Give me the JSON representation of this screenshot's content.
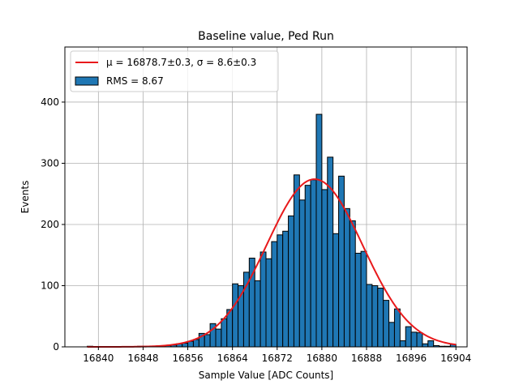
{
  "colors": {
    "bar_fill": "#1f77b4",
    "bar_edge": "#000000",
    "fit_line": "#e8191b",
    "grid": "#b0b0b0"
  },
  "chart_data": {
    "type": "bar",
    "title": "Baseline value, Ped Run",
    "xlabel": "Sample Value [ADC Counts]",
    "ylabel": "Events",
    "xlim": [
      16834,
      16906
    ],
    "ylim": [
      0,
      490
    ],
    "grid": true,
    "legend_position": "top-left",
    "x_ticks": [
      16840,
      16848,
      16856,
      16864,
      16872,
      16880,
      16888,
      16896,
      16904
    ],
    "y_ticks": [
      0,
      100,
      200,
      300,
      400
    ],
    "bin_width": 1,
    "x": [
      16838,
      16839,
      16840,
      16841,
      16842,
      16843,
      16844,
      16845,
      16846,
      16847,
      16848,
      16849,
      16850,
      16851,
      16852,
      16853,
      16854,
      16855,
      16856,
      16857,
      16858,
      16859,
      16860,
      16861,
      16862,
      16863,
      16864,
      16865,
      16866,
      16867,
      16868,
      16869,
      16870,
      16871,
      16872,
      16873,
      16874,
      16875,
      16876,
      16877,
      16878,
      16879,
      16880,
      16881,
      16882,
      16883,
      16884,
      16885,
      16886,
      16887,
      16888,
      16889,
      16890,
      16891,
      16892,
      16893,
      16894,
      16895,
      16896,
      16897,
      16898,
      16899,
      16900,
      16901,
      16902,
      16903
    ],
    "values": [
      1,
      0,
      0,
      0,
      0,
      0,
      0,
      0,
      0,
      1,
      1,
      1,
      1,
      1,
      2,
      3,
      5,
      6,
      9,
      12,
      22,
      20,
      38,
      29,
      46,
      61,
      103,
      100,
      122,
      145,
      108,
      155,
      144,
      172,
      183,
      189,
      214,
      281,
      240,
      264,
      273,
      380,
      257,
      310,
      185,
      279,
      226,
      206,
      153,
      156,
      102,
      100,
      96,
      76,
      40,
      62,
      10,
      33,
      24,
      23,
      5,
      10,
      2,
      1,
      1,
      4
    ]
  },
  "legend": [
    {
      "label": "μ = 16878.7±0.3, σ = 8.6±0.3",
      "kind": "line"
    },
    {
      "label": "RMS = 8.67",
      "kind": "bar"
    }
  ],
  "fit": {
    "mu": 16878.7,
    "sigma": 8.6,
    "amplitude": 274,
    "x_range": [
      16838,
      16904
    ]
  }
}
